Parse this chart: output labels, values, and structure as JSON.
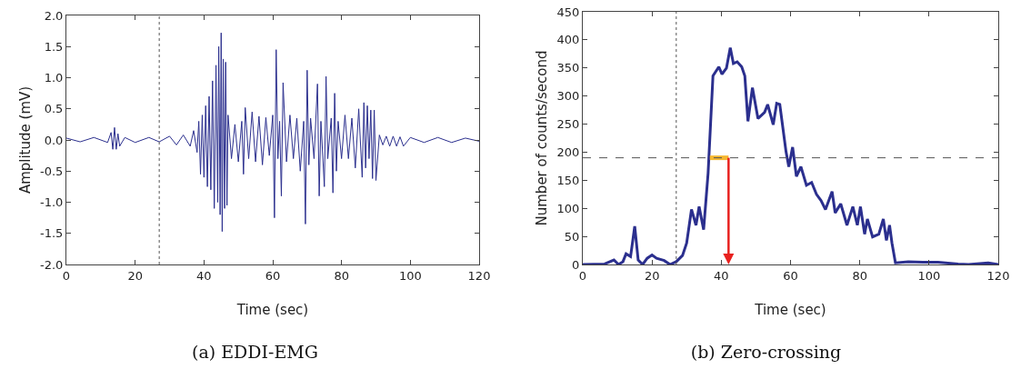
{
  "chart_data": [
    {
      "type": "line",
      "title": "(a) EDDI-EMG",
      "xlabel": "Time (sec)",
      "ylabel": "Amplitude (mV)",
      "xlim": [
        0,
        120
      ],
      "xticks": [
        0,
        20,
        40,
        60,
        80,
        100,
        120
      ],
      "ylim": [
        -2,
        2
      ],
      "yticks": [
        {
          "value": -2,
          "label": "-2.0"
        },
        {
          "value": -1.5,
          "label": "-1.5"
        },
        {
          "value": -1,
          "label": "-1.0"
        },
        {
          "value": -0.5,
          "label": "-0.5"
        },
        {
          "value": 0,
          "label": "0.0"
        },
        {
          "value": 0.5,
          "label": "0.5"
        },
        {
          "value": 1,
          "label": "1.0"
        },
        {
          "value": 1.5,
          "label": "1.5"
        },
        {
          "value": 2,
          "label": "2.0"
        }
      ],
      "grid": false,
      "marker": "none",
      "series": [
        {
          "color": "#2b2f8e",
          "x": [
            0,
            4,
            8,
            12,
            13,
            13.5,
            14,
            14.5,
            15,
            15.5,
            17,
            20,
            24,
            27,
            30,
            32,
            34,
            36,
            37,
            38,
            38.5,
            39,
            39.5,
            40,
            40.5,
            41,
            41.5,
            42,
            42.5,
            43,
            43.5,
            44,
            44.3,
            44.7,
            45,
            45.3,
            45.6,
            46,
            46.3,
            46.7,
            47,
            48,
            49,
            50,
            51,
            51.5,
            52,
            53,
            54,
            55,
            56,
            57,
            58,
            59,
            60,
            60.5,
            61,
            61.5,
            62,
            62.5,
            63,
            64,
            65,
            66,
            67,
            68,
            69,
            69.5,
            70,
            70.5,
            71,
            72,
            73,
            73.5,
            74,
            75,
            75.5,
            76,
            77,
            77.5,
            78,
            78.5,
            79,
            80,
            81,
            82,
            83,
            84,
            85,
            86,
            86.5,
            87,
            87.5,
            88,
            88.5,
            89,
            89.5,
            90,
            91,
            92,
            93,
            94,
            95,
            96,
            97,
            98,
            100,
            104,
            108,
            112,
            116,
            120
          ],
          "values": [
            0.03,
            -0.03,
            0.04,
            -0.04,
            0.12,
            -0.15,
            0.2,
            -0.15,
            0.1,
            -0.1,
            0.04,
            -0.04,
            0.04,
            -0.03,
            0.06,
            -0.08,
            0.08,
            -0.1,
            0.15,
            -0.2,
            0.3,
            -0.55,
            0.4,
            -0.6,
            0.55,
            -0.75,
            0.7,
            -0.8,
            0.95,
            -1.1,
            1.2,
            -1.0,
            1.5,
            -1.2,
            1.72,
            -1.47,
            1.3,
            -1.1,
            1.25,
            -1.05,
            0.4,
            -0.3,
            0.25,
            -0.35,
            0.3,
            -0.55,
            0.52,
            -0.3,
            0.45,
            -0.35,
            0.38,
            -0.4,
            0.36,
            -0.25,
            0.4,
            -1.25,
            1.45,
            -0.3,
            0.3,
            -0.9,
            0.92,
            -0.35,
            0.4,
            -0.3,
            0.35,
            -0.5,
            0.3,
            -1.35,
            1.12,
            -0.4,
            0.35,
            -0.3,
            0.9,
            -0.9,
            0.3,
            -0.75,
            1.02,
            -0.3,
            0.35,
            -0.85,
            0.75,
            -0.5,
            0.3,
            -0.3,
            0.4,
            -0.3,
            0.35,
            -0.45,
            0.5,
            -0.6,
            0.6,
            -0.45,
            0.55,
            -0.3,
            0.48,
            -0.62,
            0.48,
            -0.65,
            0.08,
            -0.08,
            0.06,
            -0.1,
            0.06,
            -0.1,
            0.05,
            -0.1,
            0.04,
            -0.04,
            0.04,
            -0.04,
            0.03,
            -0.02
          ]
        }
      ],
      "ref_lines": [
        {
          "axis": "x",
          "value": 27,
          "color": "#555555",
          "line_style": "dotted"
        }
      ]
    },
    {
      "type": "line",
      "title": "(b) Zero-crossing",
      "xlabel": "Time (sec)",
      "ylabel": "Number of counts/second",
      "xlim": [
        0,
        120
      ],
      "xticks": [
        0,
        20,
        40,
        60,
        80,
        100,
        120
      ],
      "ylim": [
        0,
        450
      ],
      "yticks": [
        0,
        50,
        100,
        150,
        200,
        250,
        300,
        350,
        400,
        450
      ],
      "grid": false,
      "marker": "none",
      "series": [
        {
          "color": "#2b2f8e",
          "x": [
            0,
            6.3,
            9,
            10.3,
            11.6,
            12.5,
            13.8,
            15,
            16,
            17.3,
            18.6,
            20,
            21.3,
            23.5,
            25.2,
            27,
            28.8,
            30,
            31.4,
            32.7,
            33.6,
            34.9,
            36.2,
            37.6,
            39.3,
            40.2,
            41.5,
            42.6,
            43.5,
            44.6,
            45.9,
            46.8,
            47.7,
            49,
            50.6,
            52.5,
            53.4,
            55,
            56,
            56.9,
            58.7,
            59.5,
            60.6,
            61.7,
            63,
            64.6,
            66.1,
            67.5,
            68.8,
            70.1,
            72,
            72.9,
            74.5,
            76.3,
            78,
            79.3,
            80.2,
            81.4,
            82.2,
            83.7,
            85.5,
            86.8,
            87.7,
            88.6,
            89.3,
            90.3,
            94,
            98.2,
            102.6,
            108.4,
            111.4,
            117.1,
            120
          ],
          "values": [
            0,
            1,
            8,
            0,
            5,
            19,
            14,
            68,
            8,
            0,
            11,
            17,
            11,
            7,
            0,
            5,
            16,
            38,
            98,
            70,
            103,
            62,
            163,
            336,
            352,
            339,
            350,
            386,
            358,
            361,
            352,
            336,
            255,
            315,
            260,
            271,
            285,
            249,
            287,
            285,
            201,
            174,
            209,
            157,
            174,
            141,
            146,
            125,
            114,
            98,
            130,
            92,
            108,
            70,
            103,
            70,
            103,
            54,
            81,
            49,
            54,
            81,
            43,
            70,
            38,
            3,
            5,
            4,
            4,
            1,
            0,
            3,
            0
          ]
        },
        {
          "color": "#f5b731",
          "x": [
            36.7,
            42.1
          ],
          "values": [
            190,
            190
          ]
        }
      ],
      "ref_lines": [
        {
          "axis": "x",
          "value": 27,
          "color": "#555555",
          "line_style": "dotted"
        },
        {
          "axis": "y",
          "value": 190,
          "color": "#555555",
          "line_style": "dashed"
        }
      ]
    }
  ]
}
